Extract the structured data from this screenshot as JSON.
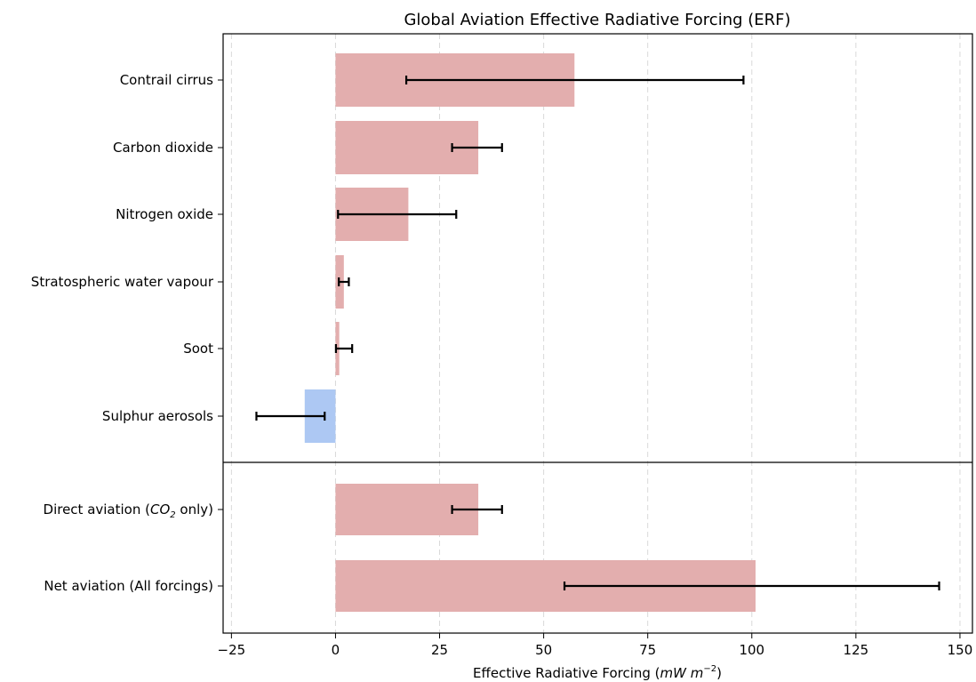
{
  "chart_data": {
    "type": "bar",
    "orientation": "horizontal",
    "title": "Global Aviation Effective Radiative Forcing (ERF)",
    "xlabel": {
      "prefix": "Effective Radiative Forcing (",
      "unit_main": "mW m",
      "unit_exp": "−2",
      "suffix": ")"
    },
    "ylabel": "",
    "xlim": [
      -27,
      153
    ],
    "xticks": [
      -25,
      0,
      25,
      50,
      75,
      100,
      125,
      150
    ],
    "xtick_labels": [
      "−25",
      "0",
      "25",
      "50",
      "75",
      "100",
      "125",
      "150"
    ],
    "grid": "x, dashed",
    "colors": {
      "positive": "#e3aeae",
      "negative": "#adc8f3",
      "error_bar": "#000000",
      "divider": "#000000"
    },
    "groups": [
      {
        "name": "components",
        "categories": [
          {
            "label": "Contrail cirrus",
            "value": 57.4,
            "err_low": 17,
            "err_high": 98
          },
          {
            "label": "Carbon dioxide",
            "value": 34.3,
            "err_low": 28,
            "err_high": 40
          },
          {
            "label": "Nitrogen oxide",
            "value": 17.5,
            "err_low": 0.6,
            "err_high": 29
          },
          {
            "label": "Stratospheric water vapour",
            "value": 2.0,
            "err_low": 0.8,
            "err_high": 3.2
          },
          {
            "label": "Soot",
            "value": 0.9,
            "err_low": 0.1,
            "err_high": 4.0
          },
          {
            "label": "Sulphur aerosols",
            "value": -7.4,
            "err_low": -19,
            "err_high": -2.6
          }
        ]
      },
      {
        "name": "totals",
        "categories": [
          {
            "label_prefix": "Direct aviation (",
            "label_chem": "CO",
            "label_sub": "2",
            "label_suffix": " only)",
            "value": 34.3,
            "err_low": 28,
            "err_high": 40
          },
          {
            "label": "Net aviation (All forcings)",
            "value": 100.9,
            "err_low": 55,
            "err_high": 145
          }
        ]
      }
    ]
  }
}
